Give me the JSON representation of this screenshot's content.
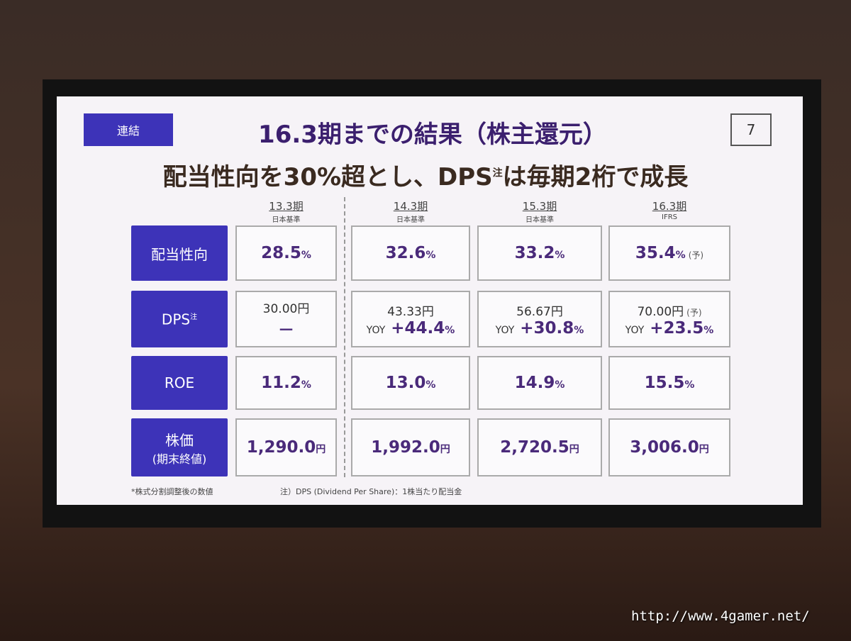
{
  "slide": {
    "tag": "連結",
    "title": "16.3期までの結果（株主還元）",
    "page": "7",
    "subtitle": {
      "main": "配当性向を30%超とし、DPS",
      "note": "注",
      "rest": "は毎期2桁で成長"
    }
  },
  "table": {
    "columns": [
      {
        "period": "13.3期",
        "standard": "日本基準"
      },
      {
        "period": "14.3期",
        "standard": "日本基準"
      },
      {
        "period": "15.3期",
        "standard": "日本基準"
      },
      {
        "period": "16.3期",
        "standard": "IFRS"
      }
    ],
    "rows": [
      {
        "label": "配当性向",
        "cells": [
          {
            "main": "28.5",
            "unit": "%"
          },
          {
            "main": "32.6",
            "unit": "%"
          },
          {
            "main": "33.2",
            "unit": "%"
          },
          {
            "main": "35.4",
            "unit": "%",
            "note": "(予)"
          }
        ]
      },
      {
        "label": "DPS",
        "label_note": "注",
        "cells": [
          {
            "price": "30.00円",
            "yoy": "－"
          },
          {
            "price": "43.33円",
            "yoy_label": "YOY",
            "yoy": "+44.4",
            "unit": "%"
          },
          {
            "price": "56.67円",
            "yoy_label": "YOY",
            "yoy": "+30.8",
            "unit": "%"
          },
          {
            "price": "70.00円",
            "note": "(予)",
            "yoy_label": "YOY",
            "yoy": "+23.5",
            "unit": "%"
          }
        ]
      },
      {
        "label": "ROE",
        "cells": [
          {
            "main": "11.2",
            "unit": "%"
          },
          {
            "main": "13.0",
            "unit": "%"
          },
          {
            "main": "14.9",
            "unit": "%"
          },
          {
            "main": "15.5",
            "unit": "%"
          }
        ]
      },
      {
        "label": "株価",
        "label_sub": "(期末終値)",
        "cells": [
          {
            "main": "1,290.0",
            "unit": "円"
          },
          {
            "main": "1,992.0",
            "unit": "円"
          },
          {
            "main": "2,720.5",
            "unit": "円"
          },
          {
            "main": "3,006.0",
            "unit": "円"
          }
        ]
      }
    ]
  },
  "footnotes": [
    "*株式分割調整後の数値",
    "注）DPS (Dividend Per Share)：1株当たり配当金"
  ],
  "watermark": "http://www.4gamer.net/"
}
